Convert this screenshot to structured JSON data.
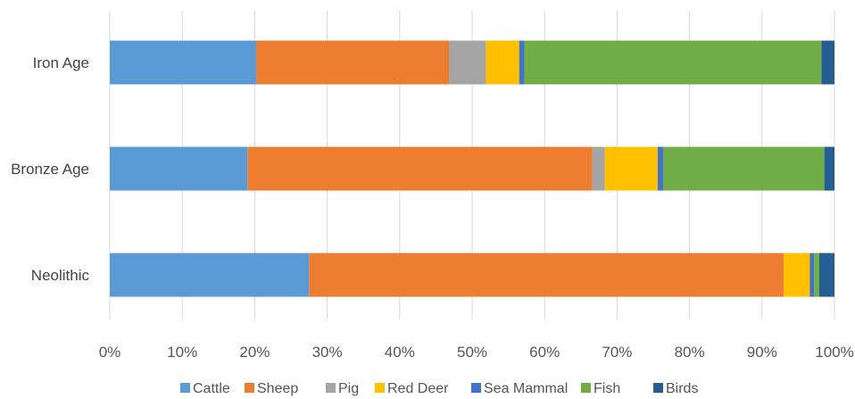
{
  "chart_data": {
    "type": "bar",
    "orientation": "horizontal",
    "stacked": "percent",
    "categories": [
      "Iron Age",
      "Bronze Age",
      "Neolithic"
    ],
    "series": [
      {
        "name": "Cattle",
        "color": "#5B9BD5",
        "values": [
          20.2,
          19.0,
          27.5
        ]
      },
      {
        "name": "Sheep",
        "color": "#ED7D31",
        "values": [
          26.6,
          47.6,
          65.5
        ]
      },
      {
        "name": "Pig",
        "color": "#A5A5A5",
        "values": [
          5.1,
          1.7,
          0.0
        ]
      },
      {
        "name": "Red Deer",
        "color": "#FFC000",
        "values": [
          4.6,
          7.3,
          3.6
        ]
      },
      {
        "name": "Sea Mammal",
        "color": "#4472C4",
        "values": [
          0.7,
          0.8,
          0.6
        ]
      },
      {
        "name": "Fish",
        "color": "#70AD47",
        "values": [
          41.0,
          22.2,
          0.7
        ]
      },
      {
        "name": "Birds",
        "color": "#255E91",
        "values": [
          1.8,
          1.4,
          2.1
        ]
      }
    ],
    "x_ticks": [
      "0%",
      "10%",
      "20%",
      "30%",
      "40%",
      "50%",
      "60%",
      "70%",
      "80%",
      "90%",
      "100%"
    ],
    "xlim": [
      0,
      100
    ],
    "grid": "vertical",
    "legend_position": "bottom",
    "title": "",
    "xlabel": "",
    "ylabel": ""
  }
}
